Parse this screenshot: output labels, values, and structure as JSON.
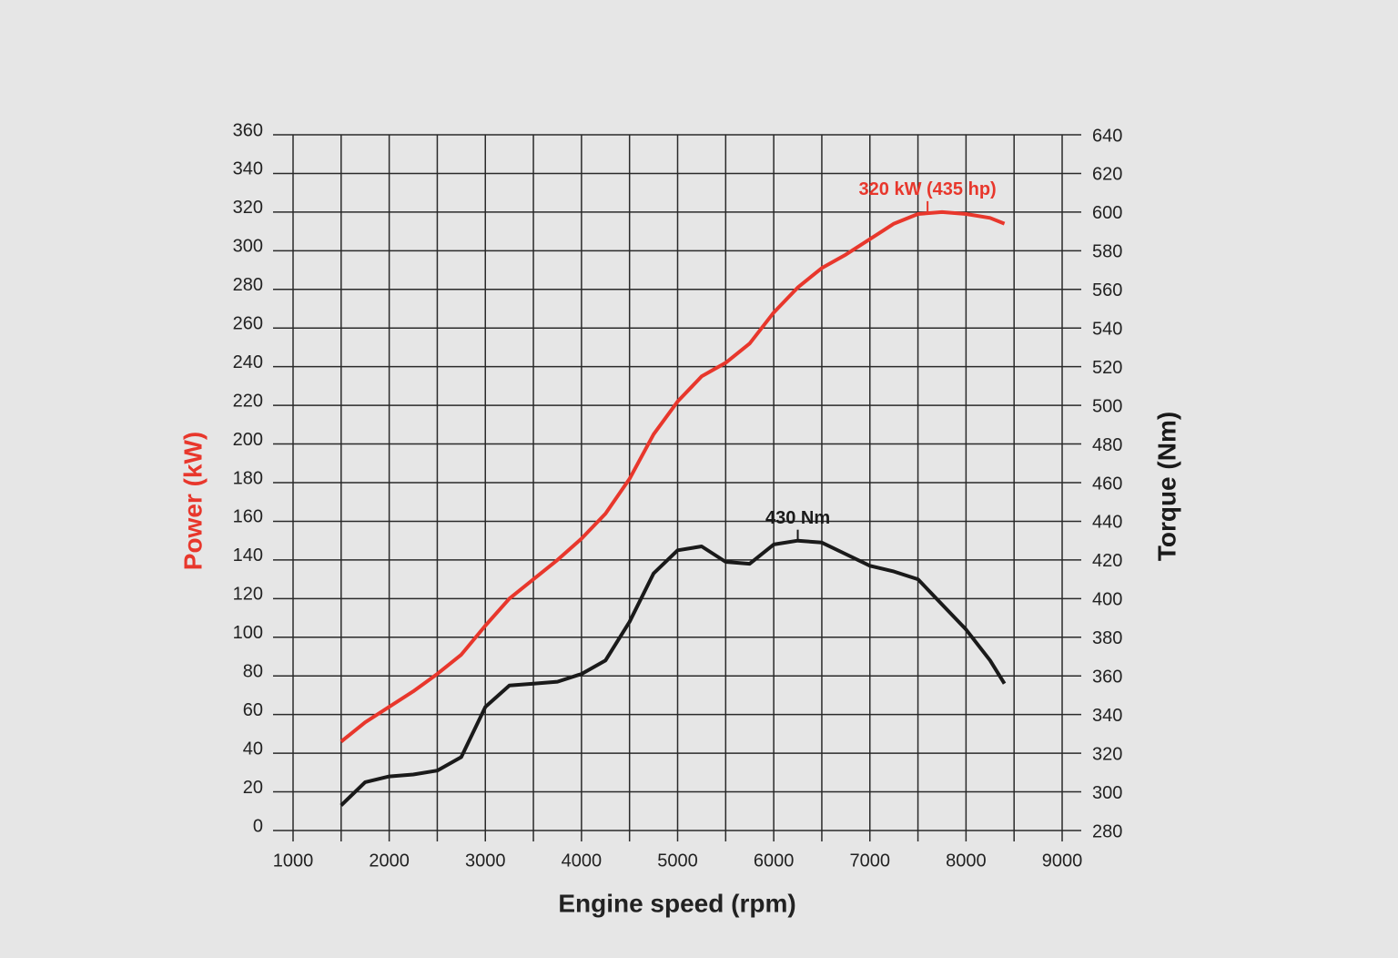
{
  "chart_data": {
    "type": "line",
    "x_label": "Engine speed (rpm)",
    "y_label": "Power (kW)",
    "y2_label": "Torque (Nm)",
    "x": [
      1500,
      1750,
      2000,
      2250,
      2500,
      2750,
      3000,
      3250,
      3500,
      3750,
      4000,
      4250,
      4500,
      4750,
      5000,
      5250,
      5500,
      5750,
      6000,
      6250,
      6500,
      6750,
      7000,
      7250,
      7500,
      7750,
      8000,
      8250,
      8400
    ],
    "series": [
      {
        "name": "Power",
        "color": "#e8372c",
        "axis": "y",
        "values": [
          46,
          56,
          64,
          72,
          81,
          91,
          106,
          120,
          130,
          140,
          151,
          164,
          182,
          205,
          222,
          235,
          242,
          252,
          268,
          281,
          291,
          298,
          306,
          314,
          319,
          320,
          319,
          317,
          314
        ]
      },
      {
        "name": "Torque",
        "color": "#1a1a1a",
        "axis": "y2",
        "values": [
          293,
          305,
          308,
          309,
          311,
          318,
          344,
          355,
          356,
          357,
          361,
          368,
          388,
          413,
          425,
          427,
          419,
          418,
          428,
          430,
          429,
          423,
          417,
          414,
          410,
          397,
          384,
          368,
          356
        ]
      }
    ],
    "annotations": [
      {
        "text": "320 kW (435 hp)",
        "x": 7600,
        "y": 320,
        "axis": "y",
        "color": "#e8372c"
      },
      {
        "text": "430 Nm",
        "x": 6250,
        "y": 430,
        "axis": "y2",
        "color": "#1a1a1a"
      }
    ],
    "xlim": [
      1000,
      9000
    ],
    "xticks": [
      1000,
      2000,
      3000,
      4000,
      5000,
      6000,
      7000,
      8000,
      9000
    ],
    "x_minor_ticks": [
      1500,
      2500,
      3500,
      4500,
      5500,
      6500,
      7500,
      8500
    ],
    "ylim": [
      0,
      360
    ],
    "yticks": [
      0,
      20,
      40,
      60,
      80,
      100,
      120,
      140,
      160,
      180,
      200,
      220,
      240,
      260,
      280,
      300,
      320,
      340,
      360
    ],
    "y2lim": [
      280,
      640
    ],
    "y2ticks": [
      280,
      300,
      320,
      340,
      360,
      380,
      400,
      420,
      440,
      460,
      480,
      500,
      520,
      540,
      560,
      580,
      600,
      620,
      640
    ],
    "grid": true
  }
}
